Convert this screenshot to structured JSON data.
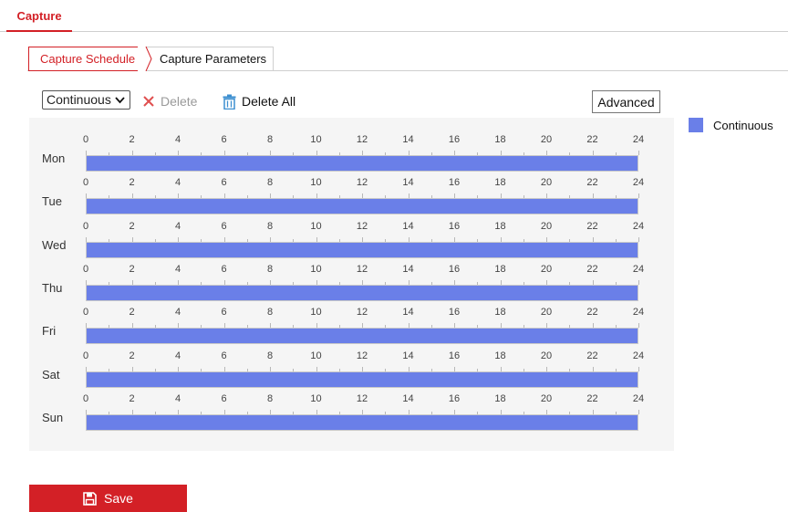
{
  "header": {
    "tab_label": "Capture"
  },
  "subtabs": [
    {
      "label": "Capture Schedule",
      "active": true
    },
    {
      "label": "Capture Parameters",
      "active": false
    }
  ],
  "toolbar": {
    "mode_select_value": "Continuous",
    "delete_label": "Delete",
    "delete_all_label": "Delete All",
    "advanced_label": "Advanced"
  },
  "legend": {
    "label": "Continuous",
    "color": "#6a7fe8"
  },
  "schedule": {
    "hour_labels": [
      "0",
      "2",
      "4",
      "6",
      "8",
      "10",
      "12",
      "14",
      "16",
      "18",
      "20",
      "22",
      "24"
    ],
    "days": [
      {
        "label": "Mon",
        "start_hour": 0,
        "end_hour": 24
      },
      {
        "label": "Tue",
        "start_hour": 0,
        "end_hour": 24
      },
      {
        "label": "Wed",
        "start_hour": 0,
        "end_hour": 24
      },
      {
        "label": "Thu",
        "start_hour": 0,
        "end_hour": 24
      },
      {
        "label": "Fri",
        "start_hour": 0,
        "end_hour": 24
      },
      {
        "label": "Sat",
        "start_hour": 0,
        "end_hour": 24
      },
      {
        "label": "Sun",
        "start_hour": 0,
        "end_hour": 24
      }
    ]
  },
  "footer": {
    "save_label": "Save"
  },
  "colors": {
    "accent": "#d32026",
    "schedule_bar": "#6a7fe8"
  },
  "icons": {
    "delete": "close-x-icon",
    "delete_all": "trash-icon",
    "save": "floppy-disk-icon",
    "select": "chevron-down-icon"
  }
}
